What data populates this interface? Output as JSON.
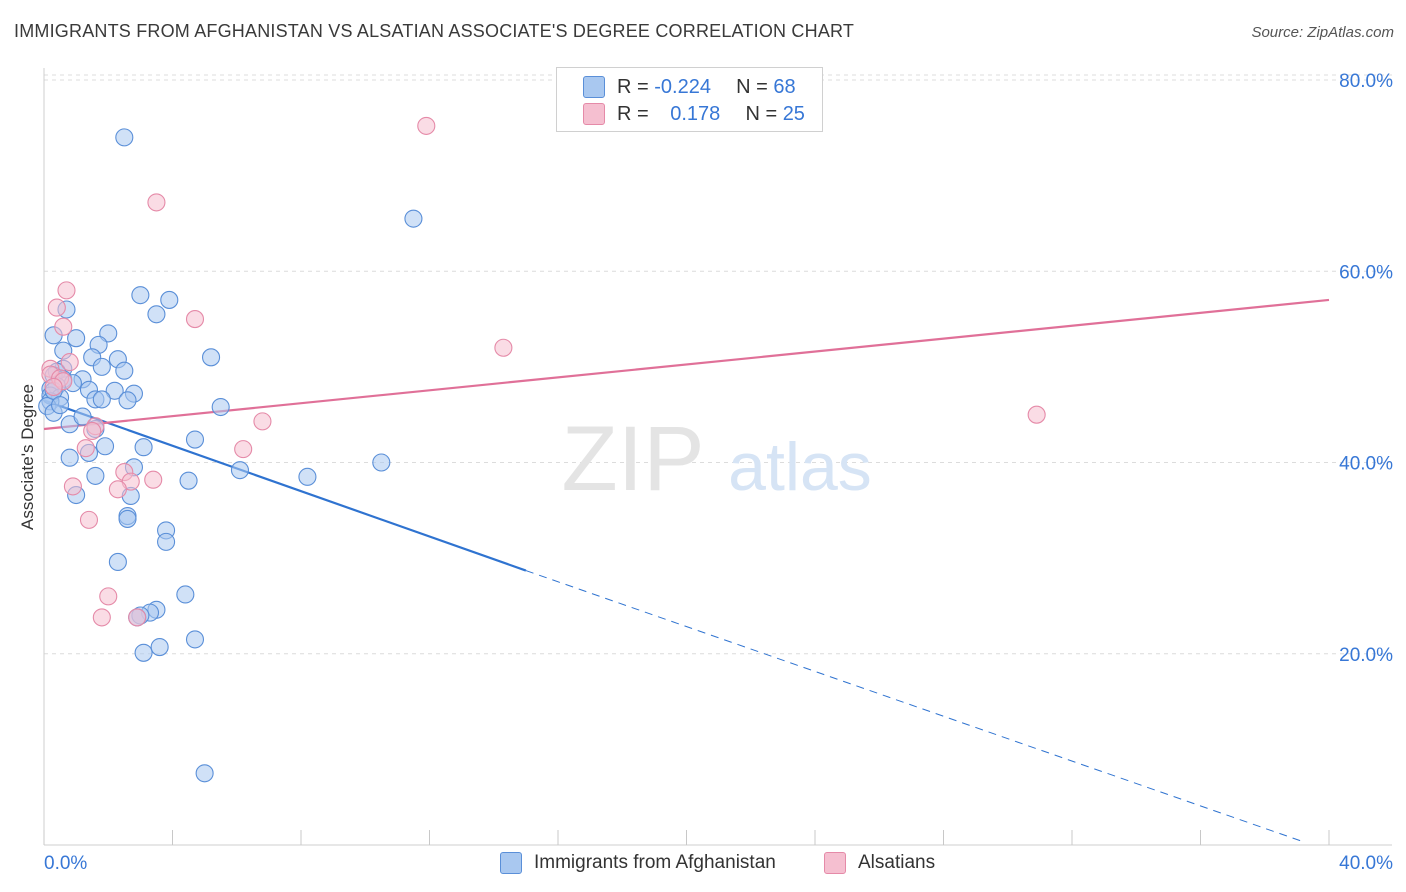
{
  "title": "IMMIGRANTS FROM AFGHANISTAN VS ALSATIAN ASSOCIATE'S DEGREE CORRELATION CHART",
  "source": "Source: ZipAtlas.com",
  "watermark": {
    "zip": "ZIP",
    "atlas": "atlas"
  },
  "legend": {
    "rows": [
      {
        "r_label": "R = ",
        "r_value": "-0.224",
        "n_label": "N = ",
        "n_value": "68"
      },
      {
        "r_label": "R = ",
        "r_value": "0.178",
        "n_label": "N = ",
        "n_value": "25"
      }
    ]
  },
  "bottom_legend": [
    "Immigrants from Afghanistan",
    "Alsatians"
  ],
  "colors": {
    "blue_fill": "#a9c8f0",
    "blue_stroke": "#5a8fd8",
    "blue_line": "#2f73d0",
    "pink_fill": "#f5bfd0",
    "pink_stroke": "#e58aa8",
    "pink_line": "#e07098",
    "axis_label": "#3777d6",
    "grid": "#dcdcdc"
  },
  "chart_data": {
    "type": "scatter",
    "title": "IMMIGRANTS FROM AFGHANISTAN VS ALSATIAN ASSOCIATE'S DEGREE CORRELATION CHART",
    "xlabel": "",
    "ylabel": "Associate's Degree",
    "xlim": [
      0,
      40
    ],
    "ylim": [
      0,
      80
    ],
    "y_ticks": [
      20,
      40,
      60,
      80
    ],
    "y_tick_labels": [
      "20.0%",
      "40.0%",
      "60.0%",
      "80.0%"
    ],
    "x_tick_labels": [
      "0.0%",
      "40.0%"
    ],
    "series": [
      {
        "name": "Immigrants from Afghanistan",
        "r": -0.224,
        "n": 68,
        "trend": {
          "x0": 0,
          "y0": 46.5,
          "x1": 15,
          "y1": 28.7,
          "dash_x1": 40,
          "dash_y1": 0
        },
        "points": [
          [
            2.5,
            74
          ],
          [
            11.5,
            65.5
          ],
          [
            3.0,
            57.5
          ],
          [
            3.9,
            57
          ],
          [
            0.7,
            56
          ],
          [
            3.5,
            55.5
          ],
          [
            0.3,
            53.3
          ],
          [
            2.0,
            53.5
          ],
          [
            1.0,
            53
          ],
          [
            1.7,
            52.3
          ],
          [
            0.6,
            51.7
          ],
          [
            1.5,
            51
          ],
          [
            5.2,
            51
          ],
          [
            2.3,
            50.8
          ],
          [
            1.8,
            50
          ],
          [
            0.6,
            49.8
          ],
          [
            0.4,
            49.5
          ],
          [
            2.5,
            49.6
          ],
          [
            0.3,
            49.1
          ],
          [
            0.6,
            48.7
          ],
          [
            1.2,
            48.7
          ],
          [
            0.9,
            48.3
          ],
          [
            0.4,
            48
          ],
          [
            0.2,
            47.7
          ],
          [
            1.4,
            47.6
          ],
          [
            2.2,
            47.5
          ],
          [
            2.8,
            47.2
          ],
          [
            0.2,
            47
          ],
          [
            0.5,
            46.8
          ],
          [
            1.6,
            46.6
          ],
          [
            1.8,
            46.6
          ],
          [
            0.2,
            46.4
          ],
          [
            2.6,
            46.5
          ],
          [
            0.1,
            45.9
          ],
          [
            5.5,
            45.8
          ],
          [
            0.3,
            45.2
          ],
          [
            1.6,
            43.5
          ],
          [
            4.7,
            42.4
          ],
          [
            3.1,
            41.6
          ],
          [
            1.9,
            41.7
          ],
          [
            1.4,
            41
          ],
          [
            0.8,
            40.5
          ],
          [
            10.5,
            40
          ],
          [
            2.8,
            39.5
          ],
          [
            6.1,
            39.2
          ],
          [
            1.6,
            38.6
          ],
          [
            8.2,
            38.5
          ],
          [
            4.5,
            38.1
          ],
          [
            1.0,
            36.6
          ],
          [
            2.7,
            36.5
          ],
          [
            2.6,
            34.4
          ],
          [
            2.6,
            34.1
          ],
          [
            3.8,
            32.9
          ],
          [
            3.8,
            31.7
          ],
          [
            2.3,
            29.6
          ],
          [
            4.4,
            26.2
          ],
          [
            3.5,
            24.6
          ],
          [
            3.3,
            24.3
          ],
          [
            3.0,
            24
          ],
          [
            2.9,
            23.8
          ],
          [
            4.7,
            21.5
          ],
          [
            3.6,
            20.7
          ],
          [
            3.1,
            20.1
          ],
          [
            5.0,
            7.5
          ],
          [
            0.3,
            47.5
          ],
          [
            0.5,
            46
          ],
          [
            0.8,
            44
          ],
          [
            1.2,
            44.8
          ]
        ]
      },
      {
        "name": "Alsatians",
        "r": 0.178,
        "n": 25,
        "trend": {
          "x0": 0,
          "y0": 43.5,
          "x1": 40,
          "y1": 57.0
        },
        "points": [
          [
            11.9,
            75.2
          ],
          [
            3.5,
            67.2
          ],
          [
            0.7,
            58
          ],
          [
            0.4,
            56.2
          ],
          [
            4.7,
            55
          ],
          [
            0.6,
            54.2
          ],
          [
            14.3,
            52
          ],
          [
            0.8,
            50.5
          ],
          [
            0.2,
            49.8
          ],
          [
            0.2,
            49.2
          ],
          [
            0.5,
            48.8
          ],
          [
            0.6,
            48.5
          ],
          [
            0.3,
            47.9
          ],
          [
            30.9,
            45
          ],
          [
            6.8,
            44.3
          ],
          [
            1.6,
            43.8
          ],
          [
            1.5,
            43.3
          ],
          [
            6.2,
            41.4
          ],
          [
            1.3,
            41.5
          ],
          [
            2.5,
            39
          ],
          [
            3.4,
            38.2
          ],
          [
            2.7,
            38
          ],
          [
            0.9,
            37.5
          ],
          [
            2.3,
            37.2
          ],
          [
            1.4,
            34
          ],
          [
            2.0,
            26
          ],
          [
            1.8,
            23.8
          ],
          [
            2.9,
            23.8
          ]
        ]
      }
    ]
  }
}
